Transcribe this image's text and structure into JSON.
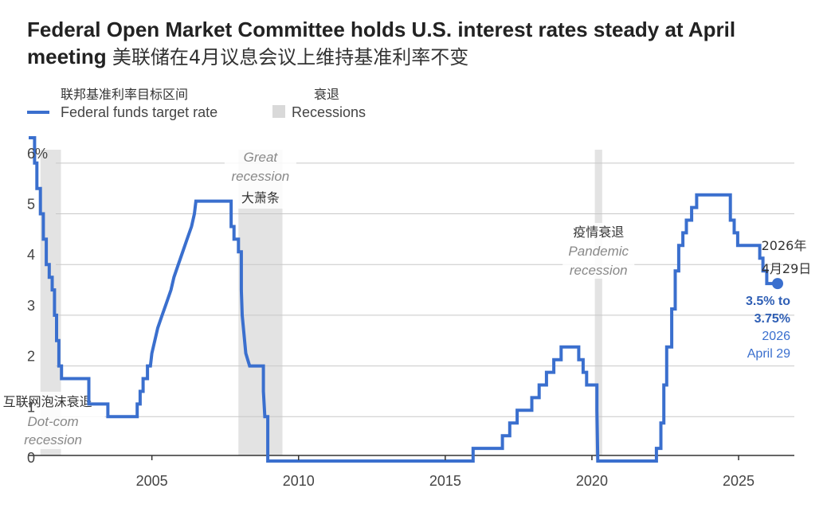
{
  "title": {
    "en": "Federal Open Market Committee holds U.S. interest rates steady at April meeting",
    "zh": "美联储在4月议息会议上维持基准利率不变"
  },
  "legend": {
    "rate_zh": "联邦基准利率目标区间",
    "rate_en": "Federal funds target rate",
    "rec_zh": "衰退",
    "rec_en": "Recessions"
  },
  "colors": {
    "line": "#3a6fce",
    "recession": "#e3e3e3",
    "grid": "#c8c8c8",
    "axis": "#333333"
  },
  "chart_data": {
    "type": "line",
    "xlim": [
      2000.8,
      2026.9
    ],
    "ylim": [
      0,
      6.5
    ],
    "x_ticks": [
      {
        "value": 2005,
        "label": "2005"
      },
      {
        "value": 2010,
        "label": "2010"
      },
      {
        "value": 2015,
        "label": "2015"
      },
      {
        "value": 2020,
        "label": "2020"
      },
      {
        "value": 2025,
        "label": "2025"
      }
    ],
    "y_ticks": [
      {
        "value": 6,
        "label": "6%"
      },
      {
        "value": 5,
        "label": "5"
      },
      {
        "value": 4,
        "label": "4"
      },
      {
        "value": 3,
        "label": "3"
      },
      {
        "value": 2,
        "label": "2"
      },
      {
        "value": 1,
        "label": "1"
      },
      {
        "value": 0,
        "label": "0"
      }
    ],
    "series": [
      {
        "points": [
          [
            2000.8,
            6.5
          ],
          [
            2001.0,
            6.5
          ],
          [
            2001.0,
            6.0
          ],
          [
            2001.08,
            6.0
          ],
          [
            2001.08,
            5.5
          ],
          [
            2001.2,
            5.5
          ],
          [
            2001.2,
            5.0
          ],
          [
            2001.3,
            5.0
          ],
          [
            2001.3,
            4.5
          ],
          [
            2001.4,
            4.5
          ],
          [
            2001.4,
            4.0
          ],
          [
            2001.5,
            4.0
          ],
          [
            2001.5,
            3.75
          ],
          [
            2001.6,
            3.75
          ],
          [
            2001.6,
            3.5
          ],
          [
            2001.68,
            3.5
          ],
          [
            2001.68,
            3.0
          ],
          [
            2001.75,
            3.0
          ],
          [
            2001.75,
            2.5
          ],
          [
            2001.83,
            2.5
          ],
          [
            2001.83,
            2.0
          ],
          [
            2001.92,
            2.0
          ],
          [
            2001.92,
            1.75
          ],
          [
            2002.85,
            1.75
          ],
          [
            2002.85,
            1.25
          ],
          [
            2003.5,
            1.25
          ],
          [
            2003.5,
            1.0
          ],
          [
            2004.5,
            1.0
          ],
          [
            2004.5,
            1.25
          ],
          [
            2004.6,
            1.25
          ],
          [
            2004.6,
            1.5
          ],
          [
            2004.7,
            1.5
          ],
          [
            2004.7,
            1.75
          ],
          [
            2004.85,
            1.75
          ],
          [
            2004.85,
            2.0
          ],
          [
            2004.95,
            2.0
          ],
          [
            2005.0,
            2.25
          ],
          [
            2005.1,
            2.5
          ],
          [
            2005.2,
            2.75
          ],
          [
            2005.35,
            3.0
          ],
          [
            2005.5,
            3.25
          ],
          [
            2005.65,
            3.5
          ],
          [
            2005.75,
            3.75
          ],
          [
            2005.9,
            4.0
          ],
          [
            2006.05,
            4.25
          ],
          [
            2006.2,
            4.5
          ],
          [
            2006.35,
            4.75
          ],
          [
            2006.45,
            5.0
          ],
          [
            2006.5,
            5.25
          ],
          [
            2007.7,
            5.25
          ],
          [
            2007.7,
            4.75
          ],
          [
            2007.8,
            4.75
          ],
          [
            2007.8,
            4.5
          ],
          [
            2007.95,
            4.5
          ],
          [
            2007.95,
            4.25
          ],
          [
            2008.05,
            4.25
          ],
          [
            2008.05,
            3.5
          ],
          [
            2008.08,
            3.0
          ],
          [
            2008.2,
            2.25
          ],
          [
            2008.33,
            2.0
          ],
          [
            2008.8,
            2.0
          ],
          [
            2008.8,
            1.5
          ],
          [
            2008.85,
            1.0
          ],
          [
            2008.95,
            1.0
          ],
          [
            2008.95,
            0.125
          ],
          [
            2015.95,
            0.125
          ],
          [
            2015.95,
            0.375
          ],
          [
            2016.95,
            0.375
          ],
          [
            2016.95,
            0.625
          ],
          [
            2017.2,
            0.625
          ],
          [
            2017.2,
            0.875
          ],
          [
            2017.45,
            0.875
          ],
          [
            2017.45,
            1.125
          ],
          [
            2017.95,
            1.125
          ],
          [
            2017.95,
            1.375
          ],
          [
            2018.2,
            1.375
          ],
          [
            2018.2,
            1.625
          ],
          [
            2018.45,
            1.625
          ],
          [
            2018.45,
            1.875
          ],
          [
            2018.7,
            1.875
          ],
          [
            2018.7,
            2.125
          ],
          [
            2018.95,
            2.125
          ],
          [
            2018.95,
            2.375
          ],
          [
            2019.55,
            2.375
          ],
          [
            2019.55,
            2.125
          ],
          [
            2019.7,
            2.125
          ],
          [
            2019.7,
            1.875
          ],
          [
            2019.82,
            1.875
          ],
          [
            2019.82,
            1.625
          ],
          [
            2020.17,
            1.625
          ],
          [
            2020.17,
            1.125
          ],
          [
            2020.2,
            0.125
          ],
          [
            2022.2,
            0.125
          ],
          [
            2022.2,
            0.375
          ],
          [
            2022.35,
            0.375
          ],
          [
            2022.35,
            0.875
          ],
          [
            2022.45,
            0.875
          ],
          [
            2022.45,
            1.625
          ],
          [
            2022.55,
            1.625
          ],
          [
            2022.55,
            2.375
          ],
          [
            2022.72,
            2.375
          ],
          [
            2022.72,
            3.125
          ],
          [
            2022.84,
            3.125
          ],
          [
            2022.84,
            3.875
          ],
          [
            2022.96,
            3.875
          ],
          [
            2022.96,
            4.375
          ],
          [
            2023.1,
            4.375
          ],
          [
            2023.1,
            4.625
          ],
          [
            2023.22,
            4.625
          ],
          [
            2023.22,
            4.875
          ],
          [
            2023.4,
            4.875
          ],
          [
            2023.4,
            5.125
          ],
          [
            2023.57,
            5.125
          ],
          [
            2023.57,
            5.375
          ],
          [
            2024.72,
            5.375
          ],
          [
            2024.72,
            4.875
          ],
          [
            2024.85,
            4.875
          ],
          [
            2024.85,
            4.625
          ],
          [
            2024.97,
            4.625
          ],
          [
            2024.97,
            4.375
          ],
          [
            2025.72,
            4.375
          ],
          [
            2025.72,
            4.125
          ],
          [
            2025.83,
            4.125
          ],
          [
            2025.83,
            3.875
          ],
          [
            2025.96,
            3.875
          ],
          [
            2025.96,
            3.625
          ],
          [
            2026.33,
            3.625
          ]
        ]
      }
    ],
    "recessions": [
      {
        "start": 2001.2,
        "end": 2001.9
      },
      {
        "start": 2007.95,
        "end": 2009.45
      },
      {
        "start": 2020.1,
        "end": 2020.35
      }
    ],
    "annotations": {
      "dotcom": {
        "zh": "互联网泡沫衰退",
        "en1": "Dot-com",
        "en2": "recession"
      },
      "great": {
        "en1": "Great",
        "en2": "recession",
        "zh": "大萧条"
      },
      "pandemic": {
        "zh": "疫情衰退",
        "en1": "Pandemic",
        "en2": "recession"
      },
      "endpoint": {
        "x": 2026.33,
        "y": 3.625,
        "zh1": "2026年",
        "zh2": "4月29日",
        "val1": "3.5% to",
        "val2": "3.75%",
        "date1": "2026",
        "date2": "April 29"
      }
    }
  }
}
